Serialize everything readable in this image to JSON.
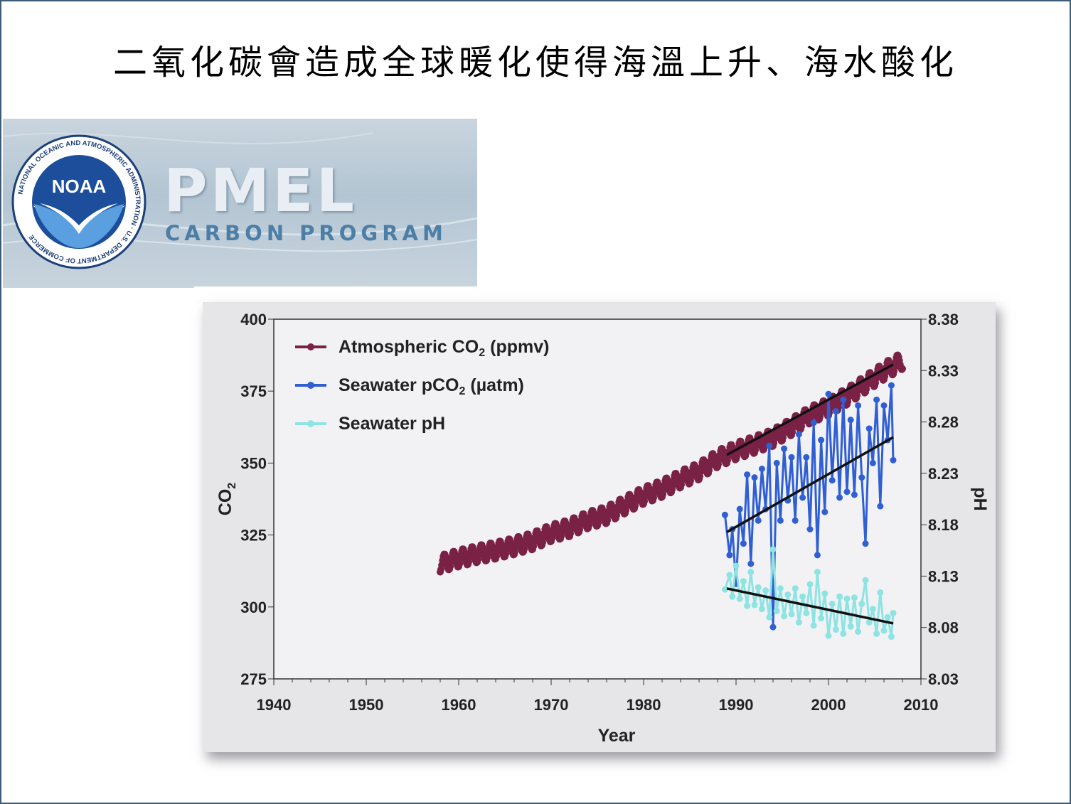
{
  "slide": {
    "title": "二氧化碳會造成全球暖化使得海溫上升、海水酸化"
  },
  "banner": {
    "logo_text": "NOAA",
    "logo_ring_text": "NATIONAL OCEANIC AND ATMOSPHERIC ADMINISTRATION · U.S. DEPARTMENT OF COMMERCE",
    "title": "PMEL",
    "subtitle": "CARBON PROGRAM",
    "colors": {
      "logo_blue": "#1c4e9c",
      "subtitle": "#4d7ea6"
    }
  },
  "chart_data": {
    "type": "line",
    "xlabel": "Year",
    "ylabel": "CO",
    "ylabel_sub": "2",
    "y2label": "pH",
    "xlim": [
      1940,
      2010
    ],
    "ylim": [
      275,
      400
    ],
    "y2lim": [
      8.03,
      8.38
    ],
    "x_ticks": [
      1940,
      1950,
      1960,
      1970,
      1980,
      1990,
      2000,
      2010
    ],
    "y_ticks": [
      275,
      300,
      325,
      350,
      375,
      400
    ],
    "y2_ticks": [
      "8.03",
      "8.08",
      "8.13",
      "8.18",
      "8.23",
      "8.28",
      "8.33",
      "8.38"
    ],
    "legend_position": "top-left",
    "series": [
      {
        "name": "Atmospheric CO",
        "name_sub": "2",
        "name_suffix": " (ppmv)",
        "color": "#7a2146",
        "axis": "left",
        "x": [
          1958,
          1960,
          1962,
          1964,
          1966,
          1968,
          1970,
          1972,
          1974,
          1976,
          1978,
          1980,
          1982,
          1984,
          1986,
          1988,
          1990,
          1992,
          1994,
          1996,
          1998,
          2000,
          2002,
          2004,
          2006,
          2008
        ],
        "values": [
          315.0,
          316.9,
          318.4,
          319.6,
          321.1,
          322.9,
          325.7,
          327.4,
          330.2,
          332.0,
          335.4,
          338.7,
          341.1,
          344.4,
          347.2,
          351.5,
          354.2,
          356.4,
          358.8,
          362.6,
          366.7,
          369.4,
          373.2,
          377.5,
          381.9,
          385.6
        ],
        "seasonal_amplitude": 3
      },
      {
        "name": "Seawater pCO",
        "name_sub": "2",
        "name_suffix": " (µatm)",
        "color": "#2f5fd3",
        "axis": "left",
        "x": [
          1988.8,
          1989.3,
          1989.6,
          1990.0,
          1990.4,
          1990.8,
          1991.2,
          1991.6,
          1992.0,
          1992.4,
          1992.8,
          1993.2,
          1993.6,
          1994.0,
          1994.4,
          1994.8,
          1995.2,
          1995.6,
          1996.0,
          1996.4,
          1996.8,
          1997.2,
          1997.6,
          1998.0,
          1998.4,
          1998.8,
          1999.2,
          1999.6,
          2000.0,
          2000.4,
          2000.8,
          2001.2,
          2001.6,
          2002.0,
          2002.4,
          2002.8,
          2003.2,
          2003.6,
          2004.0,
          2004.4,
          2004.8,
          2005.2,
          2005.6,
          2006.0,
          2006.4,
          2006.8,
          2007.0
        ],
        "values": [
          332,
          318,
          327,
          308,
          334,
          322,
          346,
          315,
          345,
          330,
          348,
          334,
          356,
          293,
          350,
          330,
          355,
          337,
          352,
          330,
          360,
          338,
          352,
          327,
          364,
          318,
          358,
          333,
          374,
          344,
          368,
          338,
          372,
          340,
          365,
          339,
          370,
          345,
          322,
          362,
          350,
          372,
          335,
          370,
          358,
          377,
          351
        ],
        "trend": [
          [
            1989,
            326
          ],
          [
            2007,
            359
          ]
        ]
      },
      {
        "name": "Seawater pH",
        "color": "#8ee3e3",
        "axis": "right",
        "x": [
          1988.8,
          1989.3,
          1989.6,
          1990.0,
          1990.4,
          1990.8,
          1991.2,
          1991.6,
          1992.0,
          1992.4,
          1992.8,
          1993.2,
          1993.6,
          1994.0,
          1994.4,
          1994.8,
          1995.2,
          1995.6,
          1996.0,
          1996.4,
          1996.8,
          1997.2,
          1997.6,
          1998.0,
          1998.4,
          1998.8,
          1999.2,
          1999.6,
          2000.0,
          2000.4,
          2000.8,
          2001.2,
          2001.6,
          2002.0,
          2002.4,
          2002.8,
          2003.2,
          2003.6,
          2004.0,
          2004.4,
          2004.8,
          2005.2,
          2005.6,
          2006.0,
          2006.4,
          2006.8,
          2007.0
        ],
        "values": [
          8.117,
          8.131,
          8.11,
          8.14,
          8.108,
          8.125,
          8.101,
          8.134,
          8.102,
          8.119,
          8.098,
          8.116,
          8.09,
          8.156,
          8.096,
          8.118,
          8.091,
          8.112,
          8.093,
          8.118,
          8.085,
          8.11,
          8.094,
          8.122,
          8.082,
          8.134,
          8.089,
          8.113,
          8.072,
          8.103,
          8.078,
          8.11,
          8.074,
          8.108,
          8.081,
          8.109,
          8.076,
          8.103,
          8.126,
          8.085,
          8.098,
          8.074,
          8.114,
          8.077,
          8.09,
          8.071,
          8.094
        ],
        "trend": [
          [
            1989,
            8.118
          ],
          [
            2007,
            8.084
          ]
        ]
      }
    ]
  }
}
